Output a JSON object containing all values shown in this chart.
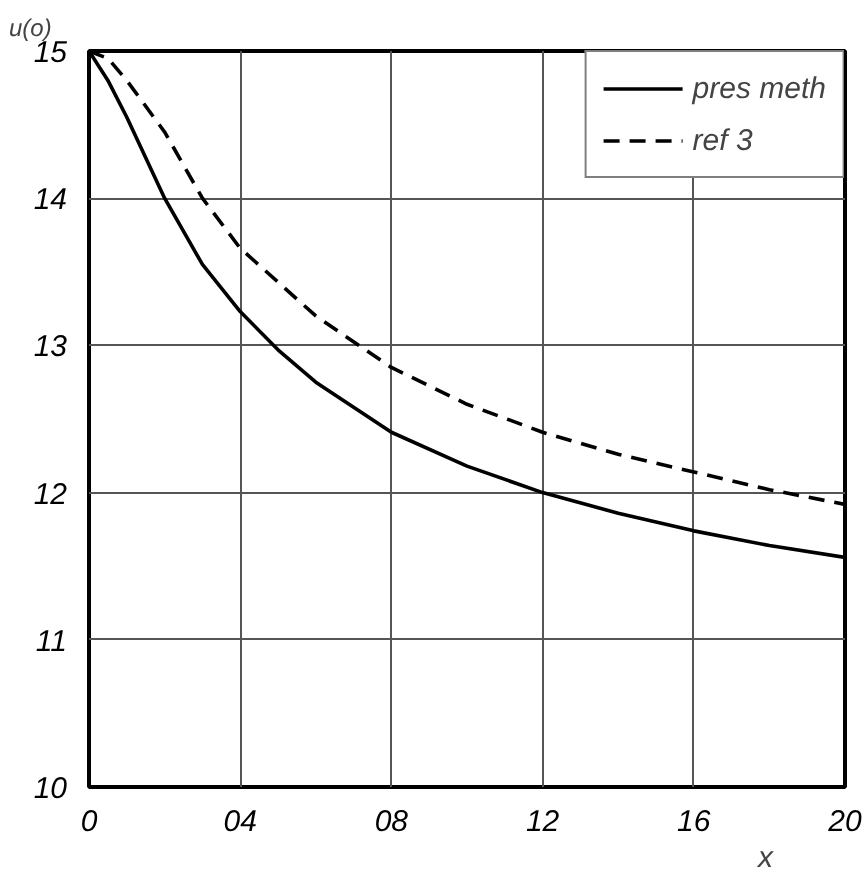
{
  "chart_data": {
    "type": "line",
    "ylabel": "u(o)",
    "xlabel": "x",
    "xlim": [
      0,
      20
    ],
    "ylim": [
      10,
      15
    ],
    "xticks": [
      0,
      {
        "value": 4,
        "label": "04"
      },
      {
        "value": 8,
        "label": "08"
      },
      12,
      16,
      20
    ],
    "yticks": [
      10,
      11,
      12,
      13,
      14,
      15
    ],
    "grid": true,
    "legend": "top right",
    "series": [
      {
        "name": "pres meth",
        "color": "#000000",
        "line_style": "solid",
        "x": [
          0,
          0.5,
          1,
          2,
          3,
          4,
          5,
          6,
          8,
          10,
          12,
          14,
          16,
          18,
          20
        ],
        "values": [
          15,
          14.8,
          14.55,
          14.0,
          13.55,
          13.23,
          12.97,
          12.75,
          12.41,
          12.18,
          12.0,
          11.86,
          11.74,
          11.64,
          11.56
        ]
      },
      {
        "name": "ref 3",
        "color": "#000000",
        "line_style": "dashed",
        "x": [
          0,
          0.5,
          1,
          2,
          3,
          4,
          6,
          8,
          10,
          12,
          14,
          16,
          18,
          20
        ],
        "values": [
          15,
          14.95,
          14.8,
          14.45,
          14.0,
          13.66,
          13.2,
          12.85,
          12.6,
          12.41,
          12.26,
          12.14,
          12.02,
          11.92
        ]
      }
    ]
  }
}
